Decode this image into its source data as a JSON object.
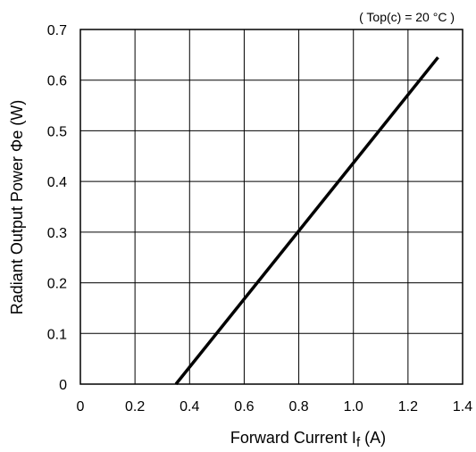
{
  "chart_data": {
    "type": "line",
    "annotation": "( Top(c) = 20 °C )",
    "xlabel": {
      "main": "Forward Current  I",
      "sub": "f",
      "unit": " (A)"
    },
    "ylabel": {
      "main": "Radiant Output Power  Φe  (W)"
    },
    "xlim": [
      0,
      1.4
    ],
    "ylim": [
      0,
      0.7
    ],
    "x_ticks": [
      "0",
      "0.2",
      "0.4",
      "0.6",
      "0.8",
      "1.0",
      "1.2",
      "1.4"
    ],
    "y_ticks": [
      "0",
      "0.1",
      "0.2",
      "0.3",
      "0.4",
      "0.5",
      "0.6",
      "0.7"
    ],
    "grid": true,
    "series": [
      {
        "color": "#000000",
        "x": [
          0.35,
          1.31
        ],
        "y": [
          0.0,
          0.645
        ]
      }
    ]
  }
}
